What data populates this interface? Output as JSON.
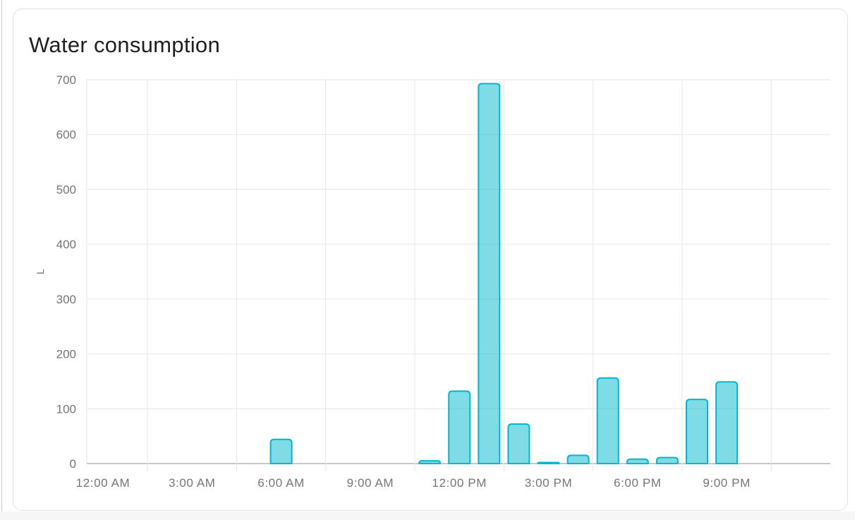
{
  "card": {
    "title": "Water consumption"
  },
  "chart_data": {
    "type": "bar",
    "title": "Water consumption",
    "ylabel": "L",
    "unit": "L",
    "xlabel": "",
    "ylim": [
      0,
      700
    ],
    "grid": true,
    "legend_position": "none",
    "y_ticks": [
      0,
      100,
      200,
      300,
      400,
      500,
      600,
      700
    ],
    "x_tick_labels": [
      "12:00 AM",
      "3:00 AM",
      "6:00 AM",
      "9:00 AM",
      "12:00 PM",
      "3:00 PM",
      "6:00 PM",
      "9:00 PM"
    ],
    "x_tick_hours": [
      0,
      3,
      6,
      9,
      12,
      15,
      18,
      21
    ],
    "series": [
      {
        "name": "Water consumption",
        "x_hours": [
          0,
          1,
          2,
          3,
          4,
          5,
          6,
          7,
          8,
          9,
          10,
          11,
          12,
          13,
          14,
          15,
          16,
          17,
          18,
          19,
          20,
          21,
          22,
          23
        ],
        "values": [
          0,
          0,
          0,
          0,
          0,
          0,
          44,
          0,
          0,
          0,
          0,
          5,
          132,
          693,
          72,
          2,
          15,
          156,
          8,
          11,
          117,
          149,
          0,
          0
        ]
      }
    ],
    "colors": {
      "bar_stroke": "#00b8ce",
      "bar_fill_opacity": 0.5,
      "gridline": "#e6e6e6",
      "axis_line": "#b6b6b6",
      "axis_label": "#757575",
      "title_text": "#1f1f1f"
    }
  }
}
